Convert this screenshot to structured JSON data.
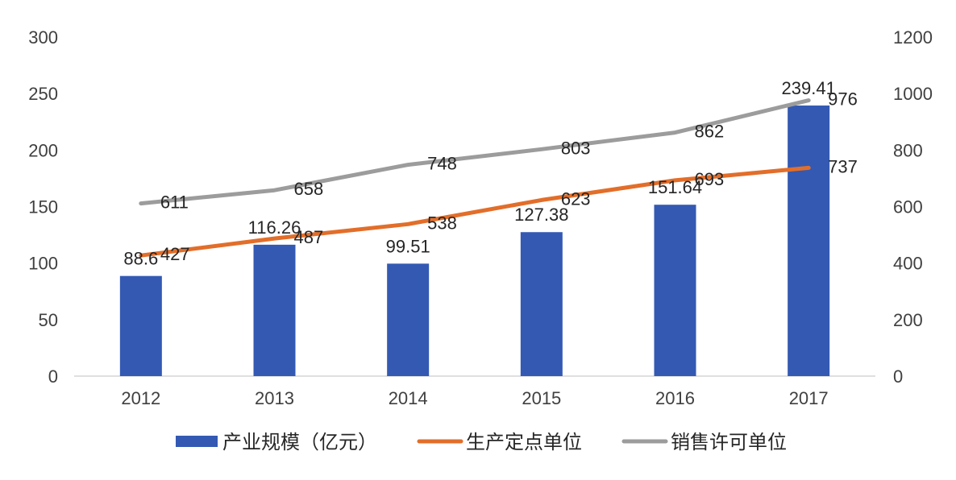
{
  "chart_data": {
    "type": "bar",
    "categories": [
      "2012",
      "2013",
      "2014",
      "2015",
      "2016",
      "2017"
    ],
    "series": [
      {
        "name": "产业规模（亿元）",
        "type": "bar",
        "axis": "left",
        "values": [
          88.6,
          116.26,
          99.51,
          127.38,
          151.64,
          239.41
        ],
        "labels": [
          "88.6",
          "116.26",
          "99.51",
          "127.38",
          "151.64",
          "239.41"
        ],
        "color": "#3359B3"
      },
      {
        "name": "生产定点单位",
        "type": "line",
        "axis": "right",
        "values": [
          427,
          487,
          538,
          623,
          693,
          737
        ],
        "labels": [
          "427",
          "487",
          "538",
          "623",
          "693",
          "737"
        ],
        "color": "#E26E2A"
      },
      {
        "name": "销售许可单位",
        "type": "line",
        "axis": "right",
        "values": [
          611,
          658,
          748,
          803,
          862,
          976
        ],
        "labels": [
          "611",
          "658",
          "748",
          "803",
          "862",
          "976"
        ],
        "color": "#9C9C9C"
      }
    ],
    "y_left": {
      "range": [
        0,
        300
      ],
      "ticks": [
        "0",
        "50",
        "100",
        "150",
        "200",
        "250",
        "300"
      ]
    },
    "y_right": {
      "range": [
        0,
        1200
      ],
      "ticks": [
        "0",
        "200",
        "400",
        "600",
        "800",
        "1000",
        "1200"
      ]
    },
    "grid": false,
    "legend_position": "bottom",
    "axis_color": "#BFBFBF"
  }
}
